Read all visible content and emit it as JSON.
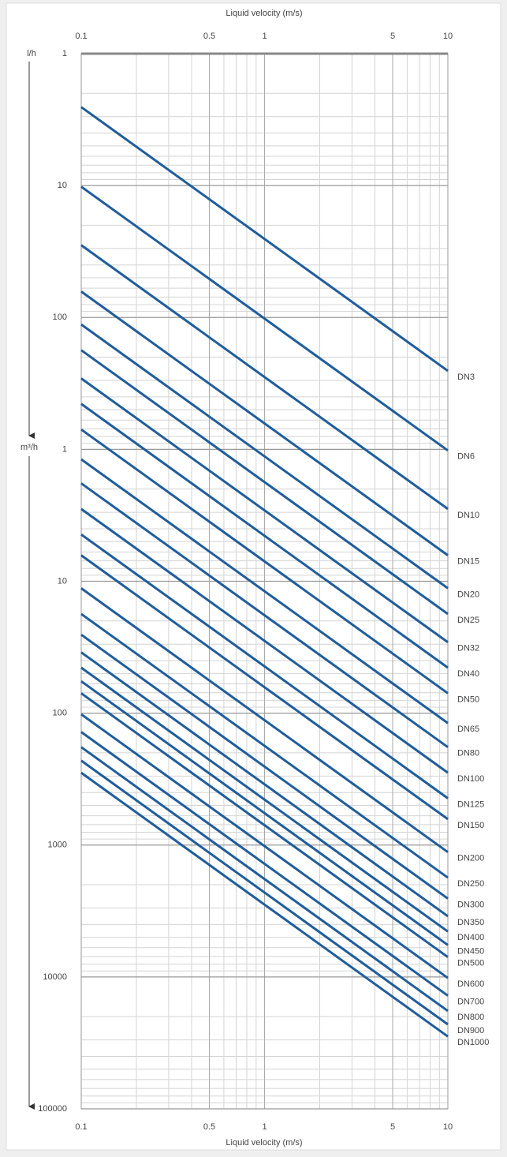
{
  "chart_data": {
    "type": "line",
    "x_label": "Liquid velocity (m/s)",
    "y_unit_upper": "l/h",
    "y_unit_lower": "m³/h",
    "x_log": true,
    "y_log": true,
    "y_inverted": true,
    "grid": true,
    "minor_grid": true,
    "line_color": "#1f5d9c",
    "xlim": [
      0.1,
      10
    ],
    "xticks": [
      0.1,
      0.5,
      1,
      5,
      10
    ],
    "ylim": [
      0.001,
      100000
    ],
    "yticks": [
      {
        "value": 0.001,
        "label": "1"
      },
      {
        "value": 0.01,
        "label": "10"
      },
      {
        "value": 0.1,
        "label": "100"
      },
      1,
      10,
      100,
      1000,
      10000,
      100000
    ],
    "x": [
      0.1,
      10
    ],
    "series": [
      {
        "name": "DN3",
        "values": [
          0.00254,
          0.254
        ]
      },
      {
        "name": "DN6",
        "values": [
          0.0102,
          1.02
        ]
      },
      {
        "name": "DN10",
        "values": [
          0.0283,
          2.83
        ]
      },
      {
        "name": "DN15",
        "values": [
          0.0636,
          6.36
        ]
      },
      {
        "name": "DN20",
        "values": [
          0.113,
          11.3
        ]
      },
      {
        "name": "DN25",
        "values": [
          0.177,
          17.7
        ]
      },
      {
        "name": "DN32",
        "values": [
          0.29,
          29
        ]
      },
      {
        "name": "DN40",
        "values": [
          0.452,
          45.2
        ]
      },
      {
        "name": "DN50",
        "values": [
          0.707,
          70.7
        ]
      },
      {
        "name": "DN65",
        "values": [
          1.19,
          119
        ]
      },
      {
        "name": "DN80",
        "values": [
          1.81,
          181
        ]
      },
      {
        "name": "DN100",
        "values": [
          2.83,
          283
        ]
      },
      {
        "name": "DN125",
        "values": [
          4.42,
          442
        ]
      },
      {
        "name": "DN150",
        "values": [
          6.36,
          636
        ]
      },
      {
        "name": "DN200",
        "values": [
          11.3,
          1131
        ]
      },
      {
        "name": "DN250",
        "values": [
          17.7,
          1767
        ]
      },
      {
        "name": "DN300",
        "values": [
          25.4,
          2545
        ]
      },
      {
        "name": "DN350",
        "values": [
          34.6,
          3464
        ]
      },
      {
        "name": "DN400",
        "values": [
          45.2,
          4524
        ]
      },
      {
        "name": "DN450",
        "values": [
          57.3,
          5726
        ]
      },
      {
        "name": "DN500",
        "values": [
          70.7,
          7069
        ]
      },
      {
        "name": "DN600",
        "values": [
          102,
          10179
        ]
      },
      {
        "name": "DN700",
        "values": [
          139,
          13854
        ]
      },
      {
        "name": "DN800",
        "values": [
          181,
          18096
        ]
      },
      {
        "name": "DN900",
        "values": [
          229,
          22902
        ]
      },
      {
        "name": "DN1000",
        "values": [
          283,
          28274
        ]
      }
    ]
  }
}
